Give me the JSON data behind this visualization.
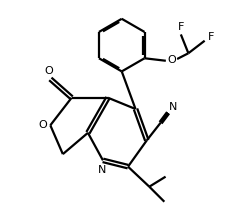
{
  "bg_color": "#ffffff",
  "line_color": "#000000",
  "line_width": 1.6,
  "font_size": 8,
  "figsize": [
    2.51,
    2.13
  ],
  "dpi": 100,
  "xlim": [
    0,
    10
  ],
  "ylim": [
    0,
    8.5
  ]
}
